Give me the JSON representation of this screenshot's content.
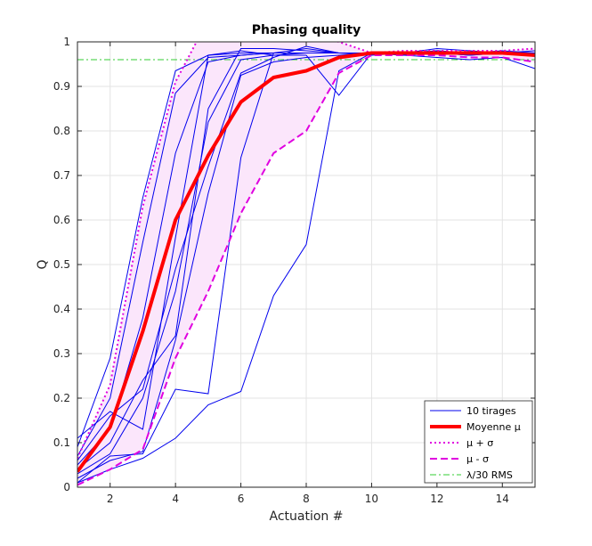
{
  "chart_data": {
    "type": "line",
    "title": "Phasing quality",
    "xlabel": "Actuation #",
    "ylabel": "Q",
    "xlim": [
      1,
      15
    ],
    "ylim": [
      0,
      1
    ],
    "xticks": [
      2,
      4,
      6,
      8,
      10,
      12,
      14
    ],
    "yticks": [
      0,
      0.1,
      0.2,
      0.3,
      0.4,
      0.5,
      0.6,
      0.7,
      0.8,
      0.9,
      1
    ],
    "ytick_labels": [
      "0",
      "0.1",
      "0.2",
      "0.3",
      "0.4",
      "0.5",
      "0.6",
      "0.7",
      "0.8",
      "0.9",
      "1"
    ],
    "grid": true,
    "legend_position": "bottom-right",
    "x": [
      1,
      2,
      3,
      4,
      5,
      6,
      7,
      8,
      9,
      10,
      11,
      12,
      13,
      14,
      15
    ],
    "threshold": {
      "name": "λ/30 RMS",
      "value": 0.96,
      "color": "#33cc33"
    },
    "runs": {
      "name": "10 tirages",
      "color": "#0000ee",
      "values": [
        [
          0.01,
          0.04,
          0.065,
          0.11,
          0.185,
          0.215,
          0.43,
          0.545,
          0.935,
          0.975,
          0.97,
          0.965,
          0.96,
          0.965,
          0.94
        ],
        [
          0.01,
          0.07,
          0.075,
          0.22,
          0.21,
          0.74,
          0.975,
          0.985,
          0.975,
          0.97,
          0.975,
          0.985,
          0.98,
          0.975,
          0.97
        ],
        [
          0.02,
          0.06,
          0.08,
          0.33,
          0.66,
          0.925,
          0.955,
          0.965,
          0.97,
          0.975,
          0.975,
          0.98,
          0.975,
          0.98,
          0.975
        ],
        [
          0.03,
          0.075,
          0.2,
          0.44,
          0.82,
          0.96,
          0.97,
          0.975,
          0.975,
          0.975,
          0.97,
          0.975,
          0.97,
          0.975,
          0.97
        ],
        [
          0.05,
          0.13,
          0.38,
          0.75,
          0.955,
          0.97,
          0.975,
          0.975,
          0.975,
          0.975,
          0.975,
          0.975,
          0.97,
          0.975,
          0.975
        ],
        [
          0.07,
          0.2,
          0.55,
          0.885,
          0.965,
          0.97,
          0.975,
          0.975,
          0.975,
          0.975,
          0.97,
          0.975,
          0.975,
          0.975,
          0.97
        ],
        [
          0.09,
          0.29,
          0.65,
          0.935,
          0.97,
          0.975,
          0.975,
          0.975,
          0.975,
          0.975,
          0.975,
          0.98,
          0.975,
          0.975,
          0.98
        ],
        [
          0.04,
          0.1,
          0.24,
          0.34,
          0.85,
          0.985,
          0.985,
          0.98,
          0.975,
          0.975,
          0.975,
          0.975,
          0.975,
          0.975,
          0.975
        ],
        [
          0.06,
          0.16,
          0.22,
          0.49,
          0.72,
          0.93,
          0.965,
          0.99,
          0.975,
          0.975,
          0.975,
          0.975,
          0.975,
          0.975,
          0.975
        ],
        [
          0.11,
          0.17,
          0.13,
          0.56,
          0.97,
          0.98,
          0.97,
          0.97,
          0.88,
          0.975,
          0.975,
          0.975,
          0.975,
          0.975,
          0.975
        ]
      ]
    },
    "mean": {
      "name": "Moyenne μ",
      "color": "#ff0000",
      "values": [
        0.035,
        0.135,
        0.35,
        0.6,
        0.745,
        0.865,
        0.92,
        0.935,
        0.965,
        0.975,
        0.975,
        0.975,
        0.975,
        0.975,
        0.97
      ]
    },
    "plus_sigma": {
      "name": "μ + σ",
      "color": "#e000e0",
      "values": [
        0.065,
        0.23,
        0.63,
        0.91,
        1.05,
        1.05,
        1.03,
        1.02,
        1.0,
        0.975,
        0.98,
        0.98,
        0.98,
        0.98,
        0.985
      ]
    },
    "minus_sigma": {
      "name": "μ - σ",
      "color": "#e000e0",
      "values": [
        0.005,
        0.04,
        0.085,
        0.29,
        0.44,
        0.615,
        0.75,
        0.8,
        0.93,
        0.97,
        0.97,
        0.97,
        0.965,
        0.965,
        0.955
      ]
    },
    "band_color": "#fbe6fb"
  }
}
